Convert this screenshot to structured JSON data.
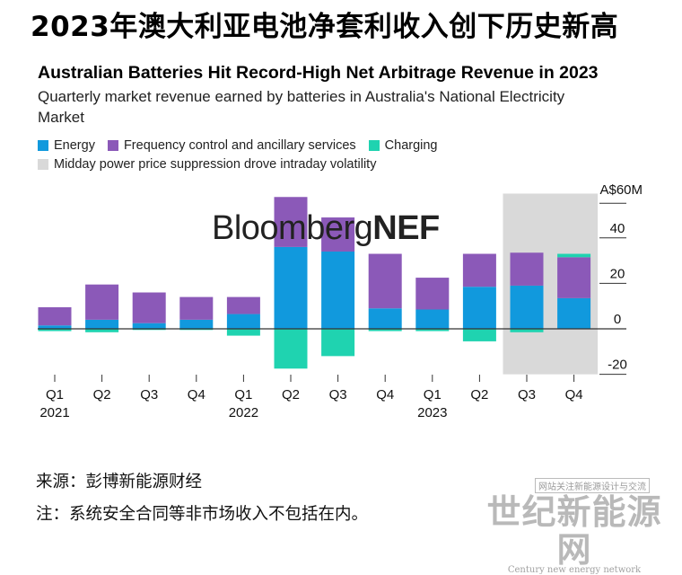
{
  "headline": "2023年澳大利亚电池净套利收入创下历史新高",
  "watermark": {
    "brand_light": "Bloomberg",
    "brand_bold": "NEF"
  },
  "footer": {
    "source": "来源：彭博新能源财经",
    "note": "注：系统安全合同等非市场收入不包括在内。"
  },
  "site_watermark": {
    "top": "网站关注新能源设计与交流",
    "main": "世纪新能源网",
    "bottom": "Century new energy network"
  },
  "colors": {
    "energy": "#1199dd",
    "fcas": "#8b59b8",
    "charging": "#1fd3b0",
    "highlight": "#d9d9d9"
  },
  "chart_data": {
    "type": "bar",
    "stacked": true,
    "title": "Australian Batteries Hit Record-High Net Arbitrage Revenue in 2023",
    "subtitle": "Quarterly market revenue earned by batteries in Australia's National Electricity Market",
    "unit_label": "A$60M",
    "ylim": [
      -20,
      60
    ],
    "yticks": [
      -20,
      0,
      20,
      40
    ],
    "y_axis_side": "right",
    "grid": false,
    "legend_position": "top-left",
    "categories": [
      "Q1",
      "Q2",
      "Q3",
      "Q4",
      "Q1",
      "Q2",
      "Q3",
      "Q4",
      "Q1",
      "Q2",
      "Q3",
      "Q4"
    ],
    "years": [
      {
        "label": "2021",
        "at_index": 0
      },
      {
        "label": "2022",
        "at_index": 4
      },
      {
        "label": "2023",
        "at_index": 8
      }
    ],
    "series": [
      {
        "name": "Energy",
        "color_key": "energy",
        "values": [
          1.5,
          4,
          2.5,
          4,
          6.5,
          36,
          34,
          9,
          8.5,
          18.5,
          19,
          13.5
        ]
      },
      {
        "name": "Frequency control and ancillary services",
        "color_key": "fcas",
        "values": [
          8,
          15.5,
          13.5,
          10,
          7.5,
          22,
          15,
          24,
          14,
          14.5,
          14.5,
          18
        ]
      },
      {
        "name": "Charging",
        "color_key": "charging",
        "values": [
          -1,
          -1.5,
          -0.5,
          -0.5,
          -3,
          -17.5,
          -12,
          -1,
          -1,
          -5.5,
          -1.5,
          1.5
        ]
      }
    ],
    "highlight": {
      "label": "Midday power price suppression drove intraday volatility",
      "from_index": 10,
      "to_index": 11
    }
  }
}
